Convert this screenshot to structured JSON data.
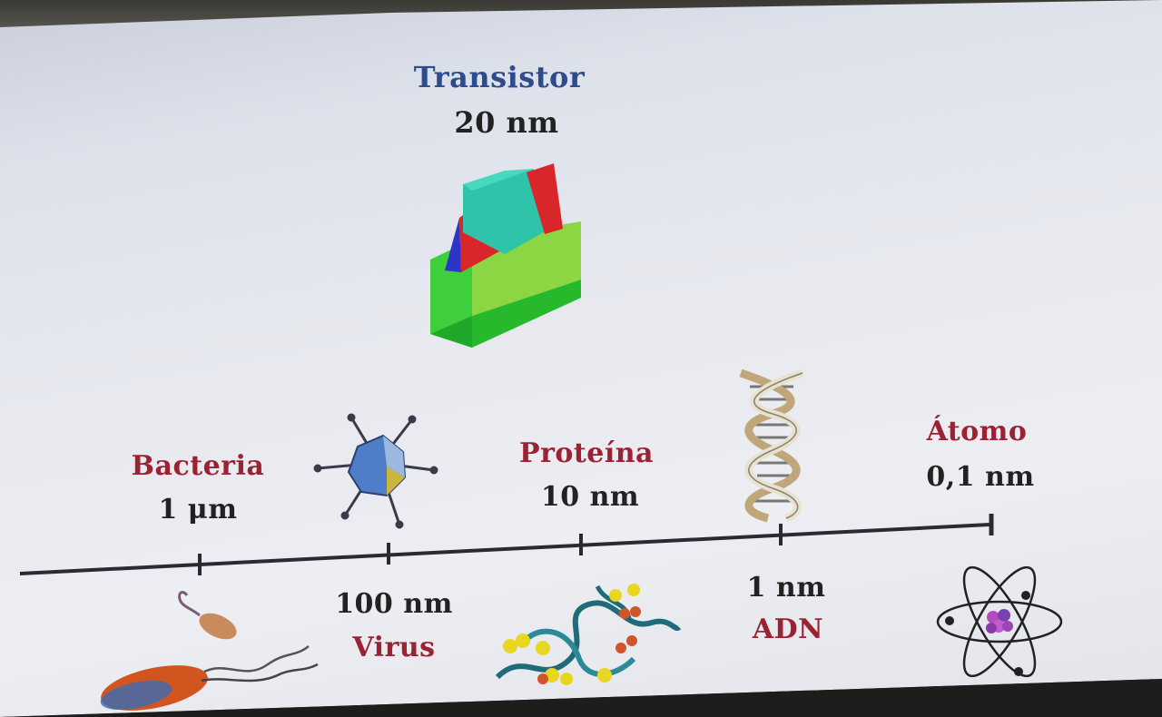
{
  "transistor": {
    "title": "Transistor",
    "size": "20 nm"
  },
  "scale_items": {
    "bacteria": {
      "name": "Bacteria",
      "size": "1 μm"
    },
    "virus": {
      "name": "Virus",
      "size": "100 nm"
    },
    "protein": {
      "name": "Proteína",
      "size": "10 nm"
    },
    "dna": {
      "name": "ADN",
      "size": "1 nm"
    },
    "atom": {
      "name": "Átomo",
      "size": "0,1 nm"
    }
  },
  "colors": {
    "name_red": "#9b2232",
    "title_blue": "#2e4b8e",
    "text_dark": "#222222"
  },
  "icons": [
    "transistor-icon",
    "bacteria-icon",
    "virus-icon",
    "protein-icon",
    "dna-icon",
    "atom-icon"
  ]
}
